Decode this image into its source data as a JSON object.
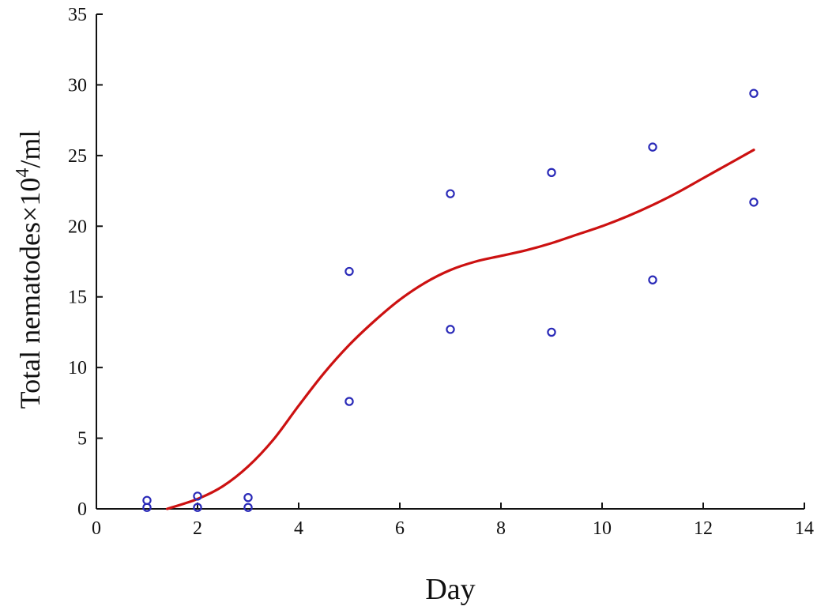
{
  "chart_data": {
    "type": "scatter",
    "title": "",
    "xlabel": "Day",
    "ylabel": {
      "prefix": "Total nematodes×10",
      "superscript": "4",
      "suffix": "/ml"
    },
    "xlim": [
      0,
      14
    ],
    "ylim": [
      0,
      35
    ],
    "xticks": [
      0,
      2,
      4,
      6,
      8,
      10,
      12,
      14
    ],
    "yticks": [
      0,
      5,
      10,
      15,
      20,
      25,
      30,
      35
    ],
    "grid": false,
    "legend": "none",
    "series": [
      {
        "kind": "points",
        "marker": "open-circle",
        "color": "#2a2ab8",
        "x": [
          1,
          1,
          2,
          2,
          3,
          3,
          5,
          5,
          7,
          7,
          9,
          9,
          11,
          11,
          13,
          13
        ],
        "y": [
          0.6,
          0.1,
          0.9,
          0.1,
          0.8,
          0.1,
          16.8,
          7.6,
          22.3,
          12.7,
          23.8,
          12.5,
          25.6,
          16.2,
          29.4,
          21.7
        ]
      },
      {
        "kind": "fitted-curve",
        "color": "#cc1111",
        "x": [
          1.4,
          2,
          2.5,
          3,
          3.5,
          4,
          4.5,
          5,
          5.5,
          6,
          6.5,
          7,
          7.5,
          8,
          8.5,
          9,
          9.5,
          10,
          10.5,
          11,
          11.5,
          12,
          12.5,
          13
        ],
        "y": [
          0.0,
          0.7,
          1.6,
          3.0,
          4.9,
          7.3,
          9.6,
          11.6,
          13.3,
          14.8,
          16.0,
          16.9,
          17.5,
          17.9,
          18.3,
          18.8,
          19.4,
          20.0,
          20.7,
          21.5,
          22.4,
          23.4,
          24.4,
          25.4
        ]
      }
    ]
  }
}
